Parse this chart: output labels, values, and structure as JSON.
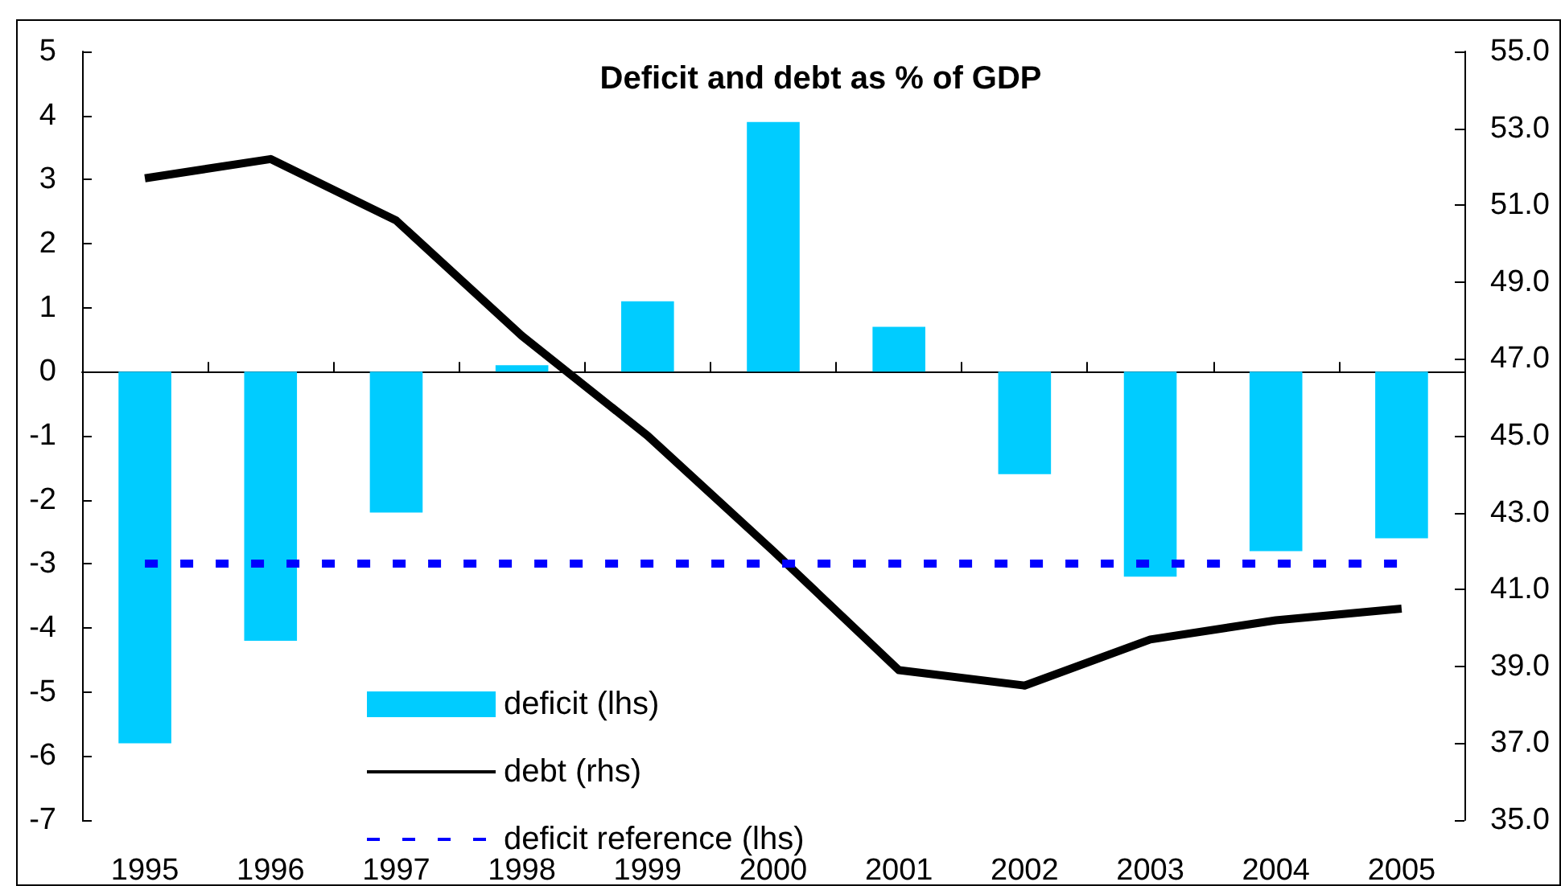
{
  "chart_data": {
    "type": "bar",
    "title": "Deficit and debt as % of GDP",
    "categories": [
      "1995",
      "1996",
      "1997",
      "1998",
      "1999",
      "2000",
      "2001",
      "2002",
      "2003",
      "2004",
      "2005"
    ],
    "series": [
      {
        "name": "deficit (lhs)",
        "type": "bar",
        "color": "#00ccff",
        "values": [
          -5.8,
          -4.2,
          -2.2,
          0.1,
          1.1,
          3.9,
          0.7,
          -1.6,
          -3.2,
          -2.8,
          -2.6
        ]
      },
      {
        "name": "debt (rhs)",
        "type": "line",
        "axis": "y2",
        "color": "#000000",
        "values": [
          51.7,
          52.2,
          50.6,
          47.6,
          45.0,
          42.0,
          38.9,
          38.5,
          39.7,
          40.2,
          40.5
        ]
      }
    ],
    "ref_lines": [
      {
        "axis": "y",
        "value": -3,
        "label": "deficit reference (lhs)",
        "color": "#0000ff",
        "line_style": "dashed"
      }
    ],
    "ylim": [
      -7,
      5
    ],
    "yticks": [
      -7,
      -6,
      -5,
      -4,
      -3,
      -2,
      -1,
      0,
      1,
      2,
      3,
      4,
      5
    ],
    "y2lim": [
      35,
      55
    ],
    "y2ticks": [
      {
        "value": 35,
        "label": "35.0"
      },
      {
        "value": 37,
        "label": "37.0"
      },
      {
        "value": 39,
        "label": "39.0"
      },
      {
        "value": 41,
        "label": "41.0"
      },
      {
        "value": 43,
        "label": "43.0"
      },
      {
        "value": 45,
        "label": "45.0"
      },
      {
        "value": 47,
        "label": "47.0"
      },
      {
        "value": 49,
        "label": "49.0"
      },
      {
        "value": 51,
        "label": "51.0"
      },
      {
        "value": 53,
        "label": "53.0"
      },
      {
        "value": 55,
        "label": "55.0"
      }
    ],
    "grid": false,
    "legend": "bottom left",
    "marker": "none"
  }
}
